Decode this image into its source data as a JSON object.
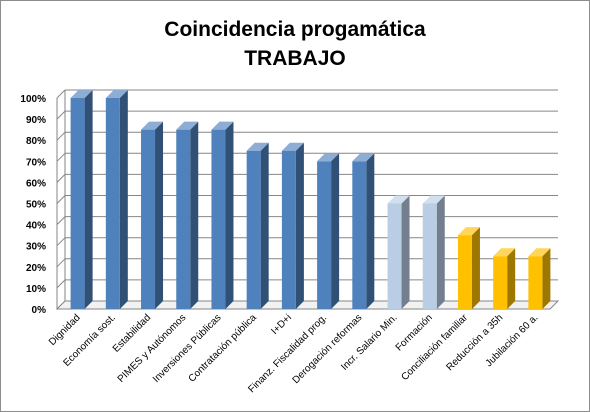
{
  "chart_data": {
    "type": "bar",
    "title": "Coincidencia progamática",
    "subtitle": "TRABAJO",
    "xlabel": "",
    "ylabel": "",
    "ylim": [
      0,
      1
    ],
    "y_ticks": [
      "0%",
      "10%",
      "20%",
      "30%",
      "40%",
      "50%",
      "60%",
      "70%",
      "80%",
      "90%",
      "100%"
    ],
    "grid": true,
    "legend": "none",
    "style": "3d-column",
    "categories": [
      "Dignidad",
      "Economía sost.",
      "Estabilidad",
      "PIMES y Autónomos",
      "Inversiones Públicas",
      "Contratación pública",
      "I+D+i",
      "Finanz. Fiscalidad prog.",
      "Derogación reformas",
      "Incr. Salario Min.",
      "Formación",
      "Conciliación familiar",
      "Reducción a 35h",
      "Jubilación 60 a."
    ],
    "values": [
      1.0,
      1.0,
      0.85,
      0.85,
      0.85,
      0.75,
      0.75,
      0.7,
      0.7,
      0.5,
      0.5,
      0.35,
      0.25,
      0.25
    ],
    "bar_colors": [
      "#4f81bd",
      "#4f81bd",
      "#4f81bd",
      "#4f81bd",
      "#4f81bd",
      "#4f81bd",
      "#4f81bd",
      "#4f81bd",
      "#4f81bd",
      "#b9cde5",
      "#b9cde5",
      "#ffc000",
      "#ffc000",
      "#ffc000"
    ],
    "colors": {
      "blue": "#4f81bd",
      "light_blue": "#b9cde5",
      "gold": "#ffc000",
      "grid": "#868686"
    }
  }
}
